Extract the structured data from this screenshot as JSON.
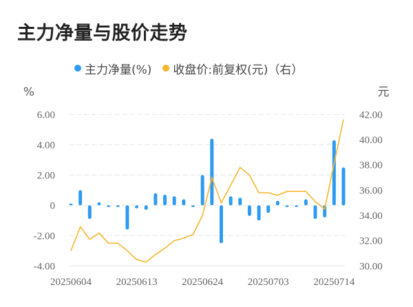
{
  "title": "主力净量与股价走势",
  "legend": [
    {
      "label": "主力净量(%)",
      "color": "#2E9BF0",
      "icon": "circle-dot"
    },
    {
      "label": "收盘价:前复权(元)（右）",
      "color": "#F7B52C",
      "icon": "circle-dot"
    }
  ],
  "axes": {
    "left_unit": "%",
    "right_unit": "元",
    "left_ticks": [
      "6.00",
      "4.00",
      "2.00",
      "0",
      "-2.00",
      "-4.00"
    ],
    "right_ticks": [
      "42.00",
      "40.00",
      "38.00",
      "36.00",
      "34.00",
      "32.00",
      "30.00"
    ],
    "x_ticks": [
      "20250604",
      "20250613",
      "20250624",
      "20250703",
      "20250714"
    ]
  },
  "chart_data": {
    "type": "bar+line",
    "title": "主力净量与股价走势",
    "xlabel": "",
    "ylabel_left": "%",
    "ylabel_right": "元",
    "ylim_left": [
      -4,
      6
    ],
    "ylim_right": [
      30,
      42
    ],
    "grid": true,
    "legend_position": "top",
    "x": [
      "20250604",
      "20250605",
      "20250606",
      "20250609",
      "20250610",
      "20250611",
      "20250612",
      "20250613",
      "20250616",
      "20250617",
      "20250618",
      "20250619",
      "20250620",
      "20250623",
      "20250624",
      "20250625",
      "20250626",
      "20250627",
      "20250630",
      "20250701",
      "20250702",
      "20250703",
      "20250704",
      "20250707",
      "20250708",
      "20250709",
      "20250710",
      "20250711",
      "20250714",
      "20250715"
    ],
    "x_tick_labels": [
      "20250604",
      "20250613",
      "20250624",
      "20250703",
      "20250714"
    ],
    "series": [
      {
        "name": "主力净量(%)",
        "type": "bar",
        "axis": "left",
        "color": "#2E9BF0",
        "values": [
          0.1,
          1.0,
          -0.9,
          0.2,
          -0.1,
          -0.1,
          -1.6,
          -0.2,
          -0.3,
          0.8,
          0.7,
          0.6,
          0.4,
          -0.1,
          2.0,
          4.4,
          -2.5,
          0.6,
          0.5,
          -0.7,
          -1.0,
          -0.5,
          0.3,
          -0.1,
          -0.1,
          0.4,
          -0.9,
          -0.8,
          4.3,
          2.5
        ]
      },
      {
        "name": "收盘价:前复权(元)",
        "type": "line",
        "axis": "right",
        "color": "#F7B52C",
        "values": [
          31.2,
          33.1,
          32.1,
          32.6,
          31.8,
          31.8,
          31.2,
          30.5,
          30.3,
          30.9,
          31.4,
          32.0,
          32.2,
          32.5,
          34.0,
          37.0,
          35.0,
          36.4,
          37.8,
          37.2,
          35.8,
          35.8,
          35.6,
          35.9,
          35.9,
          35.9,
          35.1,
          34.5,
          38.1,
          41.6
        ]
      }
    ]
  }
}
